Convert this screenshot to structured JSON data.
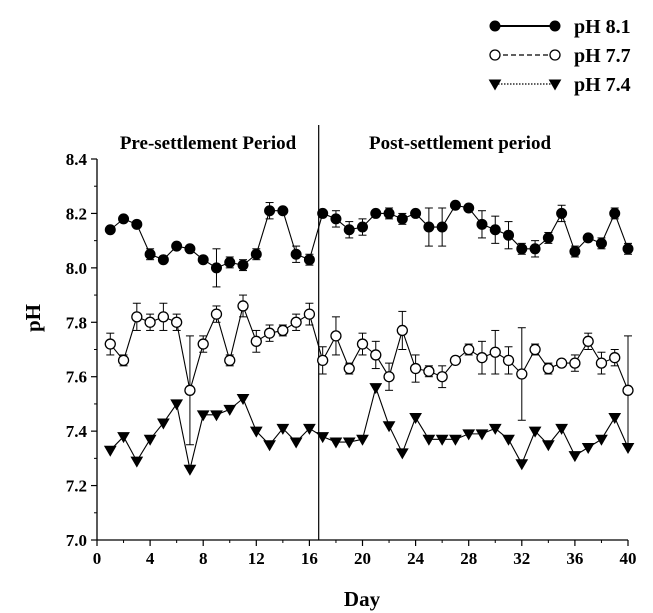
{
  "chart_data": {
    "type": "line",
    "xlabel": "Day",
    "ylabel": "pH",
    "xlim": [
      0,
      40
    ],
    "ylim": [
      7.0,
      8.4
    ],
    "xticks": [
      0,
      4,
      8,
      12,
      16,
      20,
      24,
      28,
      32,
      36,
      40
    ],
    "yticks": [
      7.0,
      7.2,
      7.4,
      7.6,
      7.8,
      8.0,
      8.2,
      8.4
    ],
    "grid": false,
    "legend_position": "top-right",
    "annotations": [
      {
        "text": "Pre-settlement Period"
      },
      {
        "text": "Post-settlement period"
      }
    ],
    "divider_x": 16.7,
    "x": [
      1,
      2,
      3,
      4,
      5,
      6,
      7,
      8,
      9,
      10,
      11,
      12,
      13,
      14,
      15,
      16,
      17,
      18,
      19,
      20,
      21,
      22,
      23,
      24,
      25,
      26,
      27,
      28,
      29,
      30,
      31,
      32,
      33,
      34,
      35,
      36,
      37,
      38,
      39,
      40
    ],
    "series": [
      {
        "name": "pH 8.1",
        "marker": "filled-circle",
        "line_style": "solid",
        "values": [
          8.14,
          8.18,
          8.16,
          8.05,
          8.03,
          8.08,
          8.07,
          8.03,
          8.0,
          8.02,
          8.01,
          8.05,
          8.21,
          8.21,
          8.05,
          8.03,
          8.2,
          8.18,
          8.14,
          8.15,
          8.2,
          8.2,
          8.18,
          8.2,
          8.15,
          8.15,
          8.23,
          8.22,
          8.16,
          8.14,
          8.12,
          8.07,
          8.07,
          8.11,
          8.2,
          8.06,
          8.11,
          8.09,
          8.2,
          8.07
        ],
        "errors": [
          0.01,
          0.01,
          0.01,
          0.02,
          0.01,
          0.01,
          0.01,
          0.01,
          0.07,
          0.02,
          0.02,
          0.02,
          0.03,
          0.01,
          0.03,
          0.02,
          0.01,
          0.03,
          0.03,
          0.03,
          0.01,
          0.02,
          0.02,
          0.01,
          0.07,
          0.07,
          0.01,
          0.01,
          0.05,
          0.05,
          0.05,
          0.02,
          0.03,
          0.02,
          0.03,
          0.02,
          0.01,
          0.02,
          0.02,
          0.02
        ]
      },
      {
        "name": "pH 7.7",
        "marker": "open-circle",
        "line_style": "dashed",
        "values": [
          7.72,
          7.66,
          7.82,
          7.8,
          7.82,
          7.8,
          7.55,
          7.72,
          7.83,
          7.66,
          7.86,
          7.73,
          7.76,
          7.77,
          7.8,
          7.83,
          7.66,
          7.75,
          7.63,
          7.72,
          7.68,
          7.6,
          7.77,
          7.63,
          7.62,
          7.6,
          7.66,
          7.7,
          7.67,
          7.69,
          7.66,
          7.61,
          7.7,
          7.63,
          7.65,
          7.65,
          7.73,
          7.65,
          7.67,
          7.55
        ],
        "errors": [
          0.04,
          0.02,
          0.05,
          0.03,
          0.05,
          0.03,
          0.2,
          0.03,
          0.03,
          0.02,
          0.04,
          0.04,
          0.03,
          0.02,
          0.03,
          0.04,
          0.05,
          0.07,
          0.02,
          0.04,
          0.05,
          0.05,
          0.07,
          0.05,
          0.02,
          0.04,
          0.01,
          0.02,
          0.06,
          0.08,
          0.05,
          0.17,
          0.02,
          0.02,
          0.01,
          0.03,
          0.03,
          0.04,
          0.03,
          0.2
        ]
      },
      {
        "name": "pH 7.4",
        "marker": "filled-triangle-down",
        "line_style": "dotted",
        "values": [
          7.33,
          7.38,
          7.29,
          7.37,
          7.43,
          7.5,
          7.26,
          7.46,
          7.46,
          7.48,
          7.52,
          7.4,
          7.35,
          7.41,
          7.36,
          7.41,
          7.38,
          7.36,
          7.36,
          7.37,
          7.56,
          7.42,
          7.32,
          7.45,
          7.37,
          7.37,
          7.37,
          7.39,
          7.39,
          7.41,
          7.37,
          7.28,
          7.4,
          7.35,
          7.41,
          7.31,
          7.34,
          7.37,
          7.45,
          7.34
        ]
      }
    ]
  }
}
